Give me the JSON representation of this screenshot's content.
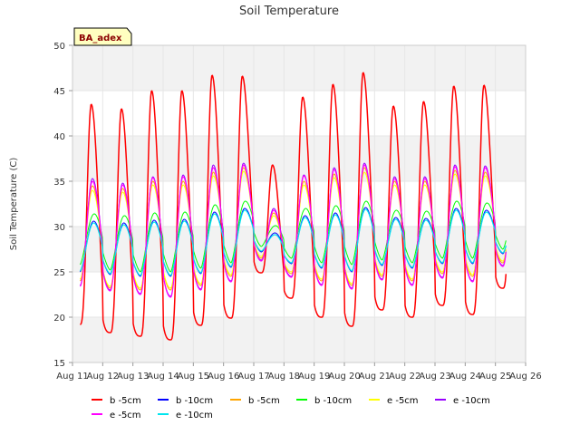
{
  "chart_data": {
    "type": "line",
    "title": "Soil Temperature",
    "xlabel": "",
    "ylabel": "Soil Temperature (C)",
    "station_tag": "BA_adex",
    "ylim": [
      15,
      50
    ],
    "xlim": [
      0,
      15
    ],
    "yticks": [
      "15",
      "20",
      "25",
      "30",
      "35",
      "40",
      "45",
      "50"
    ],
    "xticks": [
      "Aug 11",
      "Aug 12",
      "Aug 13",
      "Aug 14",
      "Aug 15",
      "Aug 16",
      "Aug 17",
      "Aug 18",
      "Aug 19",
      "Aug 20",
      "Aug 21",
      "Aug 22",
      "Aug 23",
      "Aug 24",
      "Aug 25",
      "Aug 26"
    ],
    "grid": true,
    "legend_position": "bottom",
    "days": [
      "Aug 11",
      "Aug 12",
      "Aug 13",
      "Aug 14",
      "Aug 15",
      "Aug 16",
      "Aug 17",
      "Aug 18",
      "Aug 19",
      "Aug 20",
      "Aug 21",
      "Aug 22",
      "Aug 23",
      "Aug 24",
      "Aug 25"
    ],
    "series": [
      {
        "name": "b -5cm",
        "color": "#ff0000",
        "width": 1.5,
        "peak_phase": 0.62,
        "sharpness": 3.0,
        "min": [
          19.2,
          18.3,
          17.9,
          17.5,
          19.1,
          19.9,
          24.9,
          22.1,
          20.0,
          19.0,
          20.8,
          20.0,
          21.3,
          20.3,
          23.2
        ],
        "max": [
          43.5,
          43.0,
          45.0,
          45.0,
          46.7,
          46.6,
          36.8,
          44.3,
          45.7,
          47.0,
          43.3,
          43.8,
          45.5,
          45.6,
          45.6
        ]
      },
      {
        "name": "b -10cm",
        "color": "#0000ff",
        "width": 1.0,
        "peak_phase": 0.7,
        "sharpness": 1.6,
        "min": [
          25.0,
          24.7,
          24.5,
          24.5,
          24.8,
          25.5,
          27.2,
          25.9,
          25.4,
          25.0,
          25.7,
          25.4,
          25.9,
          25.9,
          27.0
        ],
        "max": [
          30.6,
          30.4,
          30.7,
          30.8,
          31.6,
          32.0,
          29.3,
          31.2,
          31.5,
          32.1,
          31.0,
          30.9,
          32.0,
          31.8,
          31.8
        ]
      },
      {
        "name": "b -5cm",
        "color": "#ffa500",
        "width": 1.0,
        "peak_phase": 0.66,
        "sharpness": 2.0,
        "min": [
          24.0,
          23.2,
          23.0,
          23.0,
          23.5,
          24.5,
          26.5,
          24.8,
          24.0,
          23.5,
          24.5,
          24.0,
          24.8,
          24.5,
          26.0
        ],
        "max": [
          34.5,
          34.2,
          35.0,
          35.0,
          36.0,
          36.5,
          31.5,
          35.0,
          35.8,
          36.5,
          35.0,
          35.0,
          36.2,
          36.0,
          36.0
        ]
      },
      {
        "name": "b -10cm",
        "color": "#00ff00",
        "width": 1.0,
        "peak_phase": 0.72,
        "sharpness": 1.5,
        "min": [
          25.8,
          25.2,
          25.0,
          25.0,
          25.4,
          26.0,
          27.8,
          26.5,
          26.0,
          25.8,
          26.3,
          26.0,
          26.5,
          26.5,
          27.5
        ],
        "max": [
          31.4,
          31.2,
          31.5,
          31.6,
          32.4,
          32.8,
          30.1,
          32.0,
          32.3,
          32.8,
          31.8,
          31.7,
          32.8,
          32.6,
          32.6
        ]
      },
      {
        "name": "e -5cm",
        "color": "#ffff00",
        "width": 1.0,
        "peak_phase": 0.66,
        "sharpness": 2.0,
        "min": [
          24.2,
          23.4,
          23.2,
          23.2,
          23.7,
          24.7,
          26.7,
          25.0,
          24.2,
          23.7,
          24.7,
          24.2,
          25.0,
          24.7,
          26.2
        ],
        "max": [
          34.0,
          33.8,
          34.6,
          34.6,
          35.6,
          36.1,
          31.2,
          34.6,
          35.4,
          36.0,
          34.6,
          34.6,
          35.8,
          35.6,
          35.6
        ]
      },
      {
        "name": "e -10cm",
        "color": "#9900ff",
        "width": 1.0,
        "peak_phase": 0.66,
        "sharpness": 2.0,
        "min": [
          23.5,
          23.0,
          22.6,
          22.3,
          23.1,
          24.0,
          26.3,
          24.5,
          23.6,
          23.2,
          24.2,
          23.6,
          24.4,
          24.0,
          25.7
        ],
        "max": [
          35.3,
          34.8,
          35.5,
          35.7,
          36.8,
          37.0,
          32.0,
          35.7,
          36.5,
          37.0,
          35.5,
          35.5,
          36.8,
          36.7,
          36.7
        ]
      },
      {
        "name": "e -5cm",
        "color": "#ff00ff",
        "width": 1.2,
        "peak_phase": 0.66,
        "sharpness": 2.0,
        "min": [
          23.4,
          22.9,
          22.5,
          22.2,
          23.0,
          23.9,
          26.2,
          24.4,
          23.5,
          23.1,
          24.1,
          23.5,
          24.3,
          23.9,
          25.6
        ],
        "max": [
          35.0,
          34.6,
          35.4,
          35.5,
          36.5,
          36.8,
          31.8,
          35.6,
          36.3,
          36.8,
          35.3,
          35.3,
          36.6,
          36.5,
          36.5
        ]
      },
      {
        "name": "e -10cm",
        "color": "#00e5ee",
        "width": 1.2,
        "peak_phase": 0.7,
        "sharpness": 1.6,
        "min": [
          25.1,
          24.8,
          24.6,
          24.6,
          24.9,
          25.6,
          27.3,
          26.0,
          25.5,
          25.1,
          25.8,
          25.5,
          26.0,
          26.0,
          27.1
        ],
        "max": [
          30.4,
          30.2,
          30.5,
          30.6,
          31.4,
          31.8,
          29.1,
          31.0,
          31.3,
          31.9,
          30.8,
          30.7,
          31.8,
          31.6,
          31.6
        ]
      }
    ]
  }
}
